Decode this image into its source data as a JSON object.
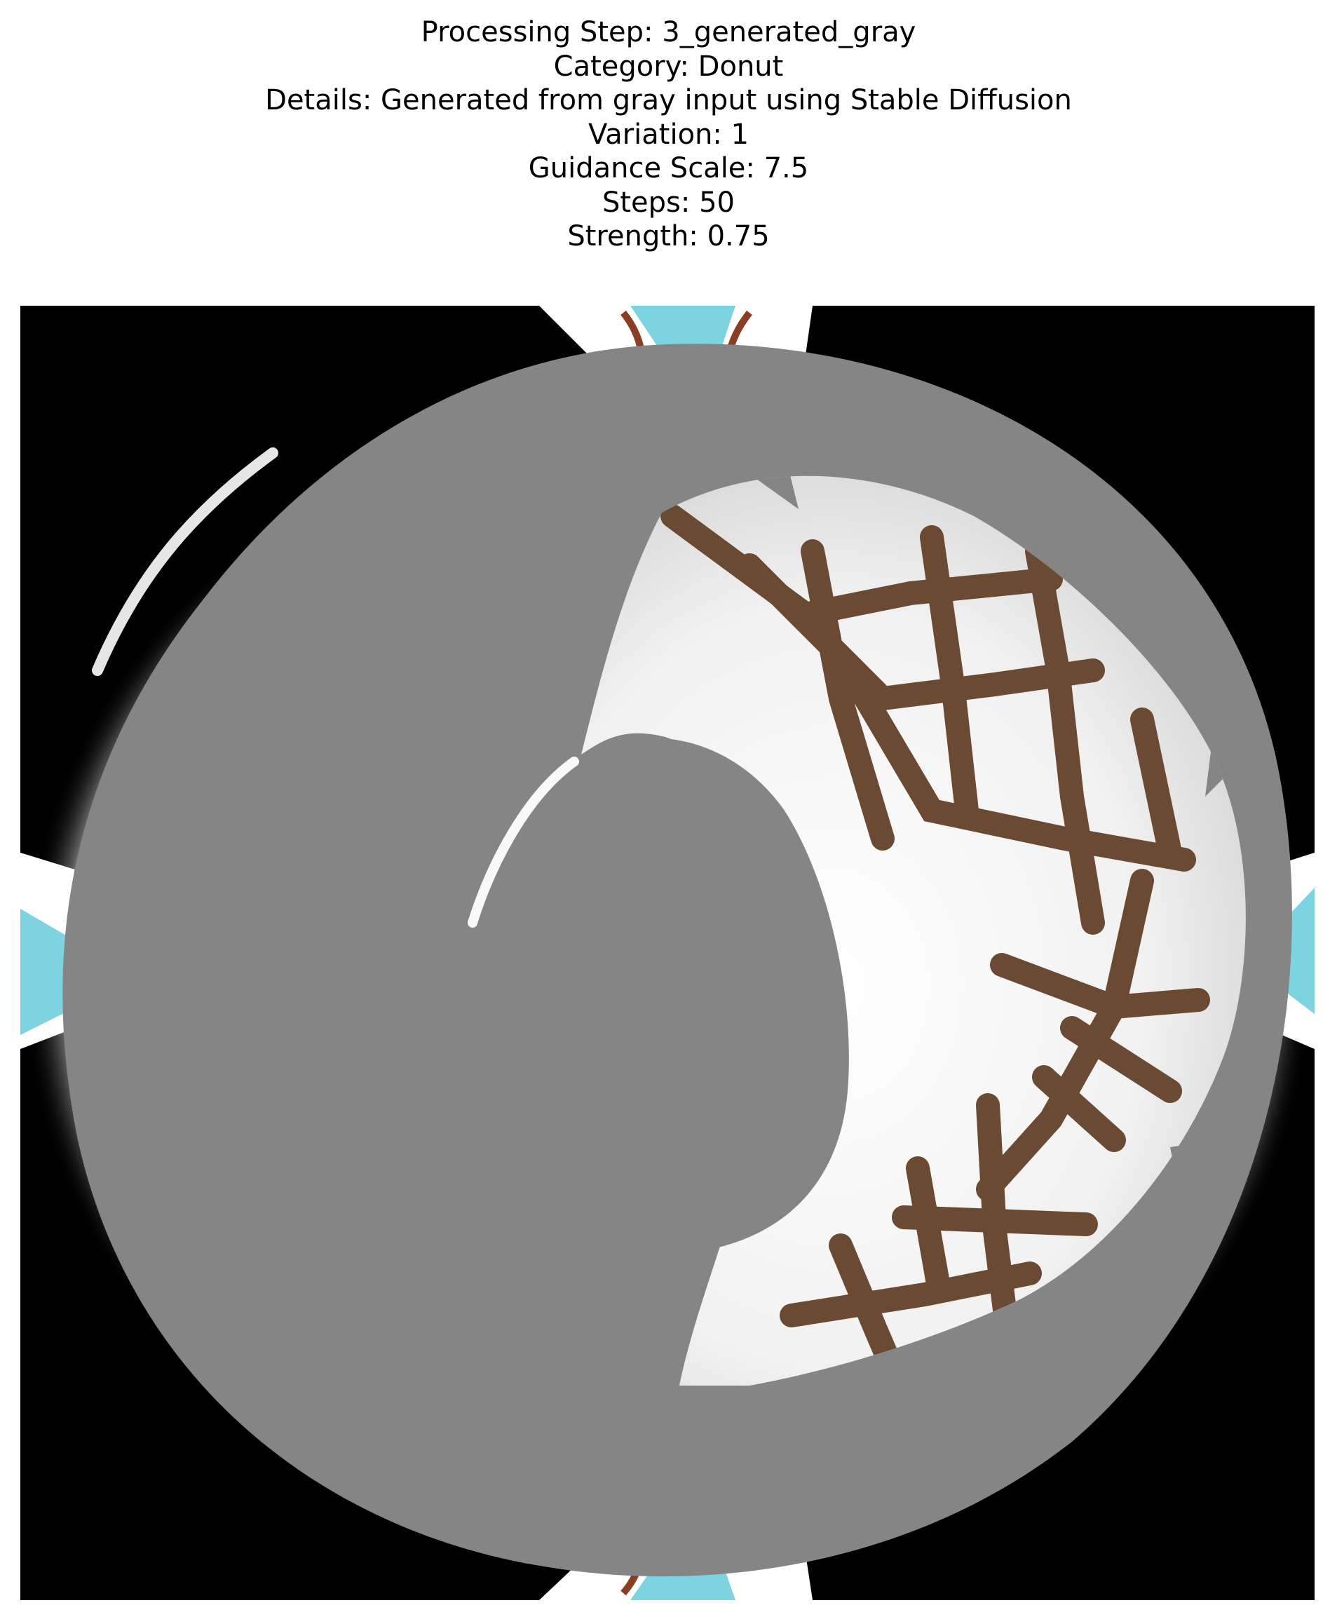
{
  "figure": {
    "title_lines": [
      "Processing Step: 3_generated_gray",
      "Category: Donut",
      "Details: Generated from gray input using Stable Diffusion",
      "Variation: 1",
      "Guidance Scale: 7.5",
      "Steps: 50",
      "Strength: 0.75"
    ],
    "image": {
      "subject": "generated donut image",
      "colors": {
        "background": "#000000",
        "glow": "#f2f2f2",
        "donut_gray": "#858585",
        "hole_gray": "#858585",
        "icing_white": "#eeeeee",
        "drizzle_brown": "#6b4a33",
        "corner_cyan": "#7dd3e0"
      }
    }
  }
}
